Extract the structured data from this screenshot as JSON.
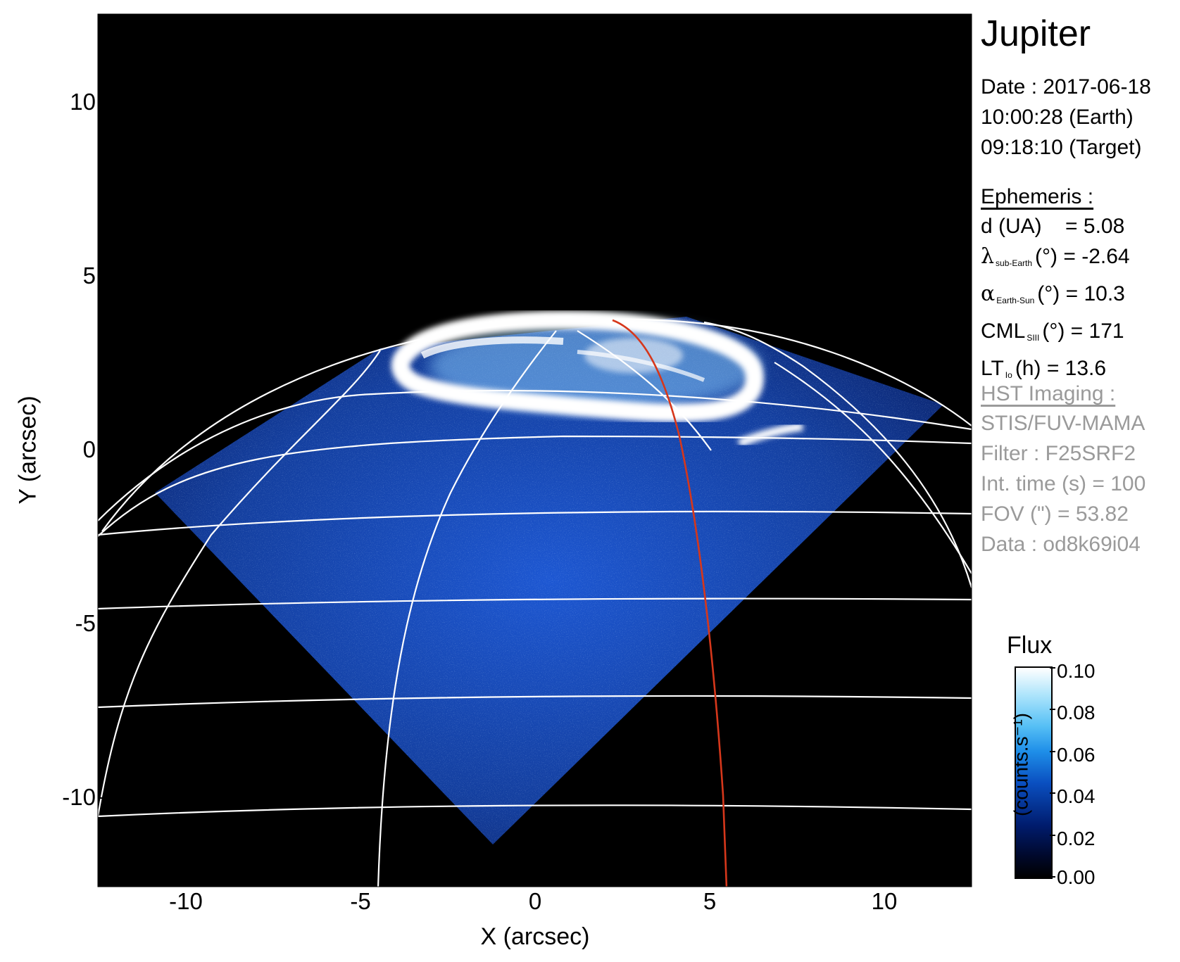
{
  "title": "Jupiter",
  "date": {
    "line1": "Date : 2017-06-18",
    "line2": "10:00:28 (Earth)",
    "line3": "09:18:10 (Target)"
  },
  "ephemeris": {
    "heading": "Ephemeris :",
    "d_label": "d (UA)",
    "d_value": "= 5.08",
    "lat_symbol": "λ",
    "lat_sub": "sub-Earth",
    "lat_rest": "(°) = -2.64",
    "phase_symbol": "α",
    "phase_sub": "Earth-Sun",
    "phase_rest": "(°) = 10.3",
    "cml_label": "CML",
    "cml_sub": "SIII",
    "cml_rest": "(°) = 171",
    "lt_label": "LT",
    "lt_sub": "Io",
    "lt_rest": "(h) = 13.6"
  },
  "hst": {
    "heading": "HST Imaging :",
    "instrument": "STIS/FUV-MAMA",
    "filter": "Filter : F25SRF2",
    "int_time": "Int. time (s) = 100",
    "fov": "FOV (\") = 53.82",
    "data": "Data : od8k69i04"
  },
  "axes": {
    "xlabel": "X (arcsec)",
    "ylabel": "Y (arcsec)",
    "xticks": [
      "-10",
      "-5",
      "0",
      "5",
      "10"
    ],
    "yticks": [
      "10",
      "5",
      "0",
      "-5",
      "-10"
    ],
    "range": [
      -12.5,
      12.5
    ]
  },
  "colorbar": {
    "title": "Flux",
    "unit": "(counts.s⁻¹)",
    "ticks": [
      "0.10",
      "0.08",
      "0.06",
      "0.04",
      "0.02",
      "0.00"
    ],
    "range": [
      0.0,
      0.1
    ],
    "colors": [
      "#000000",
      "#001c6e",
      "#0a4fc0",
      "#1e8ee8",
      "#a7e2fb",
      "#ffffff"
    ]
  },
  "colors": {
    "grid": "#ffffff",
    "io_footprint_track": "#d6371b",
    "disk_blue": "#1a4fc4",
    "aurora": "#ffffff"
  }
}
